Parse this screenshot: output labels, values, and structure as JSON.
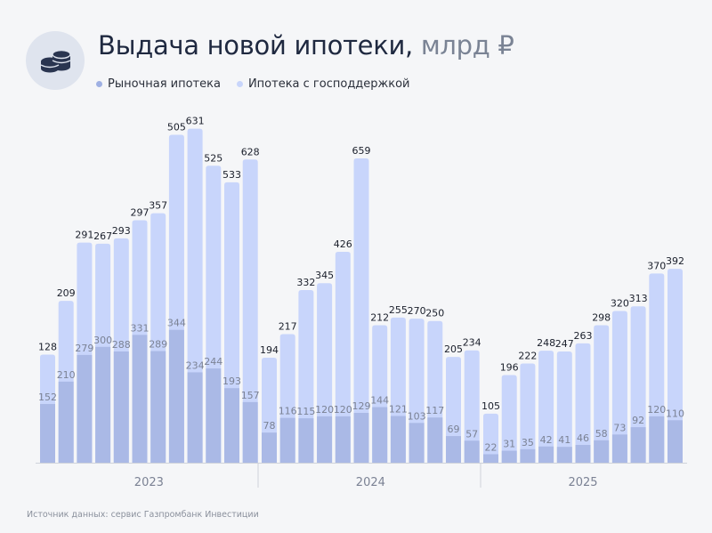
{
  "header": {
    "title": "Выдача новой ипотеки,",
    "unit": " млрд ₽",
    "icon": "coins-icon"
  },
  "source": "Источник данных: сервис Газпромбанк Инвестиции",
  "colors": {
    "market": "#aab9e6",
    "state": "#c8d5fb",
    "title": "#1f2940"
  },
  "chart_data": {
    "type": "bar",
    "stacked": true,
    "title": "Выдача новой ипотеки, млрд ₽",
    "legend": [
      "Рыночная ипотека",
      "Ипотека с господдержкой"
    ],
    "legend_position": "top-left",
    "groups": [
      {
        "year": "2023",
        "market": [
          152,
          210,
          279,
          300,
          288,
          331,
          289,
          344,
          234,
          244,
          193,
          157
        ],
        "state": [
          128,
          209,
          291,
          267,
          293,
          297,
          357,
          505,
          631,
          525,
          533,
          628
        ]
      },
      {
        "year": "2024",
        "market": [
          78,
          116,
          115,
          120,
          120,
          129,
          144,
          121,
          103,
          117,
          69,
          57
        ],
        "state": [
          194,
          217,
          332,
          345,
          426,
          659,
          212,
          255,
          270,
          250,
          205,
          234
        ]
      },
      {
        "year": "2025",
        "market": [
          22,
          31,
          35,
          42,
          41,
          46,
          58,
          73,
          92,
          120,
          110
        ],
        "state": [
          105,
          196,
          222,
          248,
          247,
          263,
          298,
          320,
          313,
          370,
          392
        ]
      }
    ]
  }
}
